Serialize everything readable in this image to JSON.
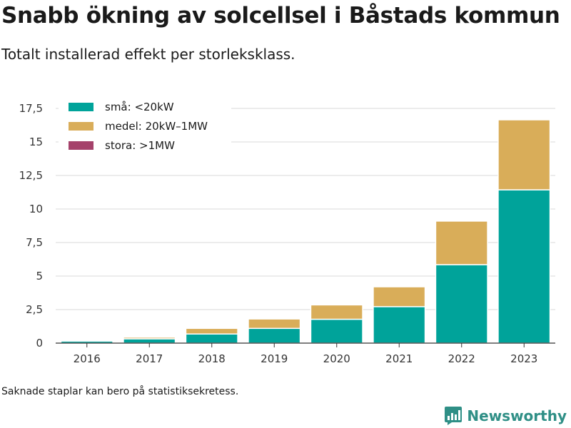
{
  "title": "Snabb ökning av solcellsel i Båstads kommun",
  "subtitle": "Totalt installerad effekt per storleksklass.",
  "note": "Saknade staplar kan bero på statistiksekretess.",
  "brand": "Newsworthy",
  "colors": {
    "small": "#00a39a",
    "medium": "#d9ad59",
    "large": "#a5426b",
    "grid": "#d9d9d9",
    "axis": "#333333",
    "brand": "#2f8f86"
  },
  "chart_data": {
    "type": "bar",
    "stacked": true,
    "categories": [
      "2016",
      "2017",
      "2018",
      "2019",
      "2020",
      "2021",
      "2022",
      "2023"
    ],
    "series": [
      {
        "name": "små: <20kW",
        "color": "#00a39a",
        "values": [
          0.15,
          0.32,
          0.68,
          1.1,
          1.78,
          2.72,
          5.85,
          11.43
        ]
      },
      {
        "name": "medel: 20kW–1MW",
        "color": "#d9ad59",
        "values": [
          0.0,
          0.12,
          0.42,
          0.7,
          1.07,
          1.48,
          3.25,
          5.22
        ]
      },
      {
        "name": "stora: >1MW",
        "color": "#a5426b",
        "values": [
          0,
          0,
          0,
          0,
          0,
          0,
          0,
          0
        ]
      }
    ],
    "yticks": [
      "0",
      "2,5",
      "5",
      "7,5",
      "10",
      "12,5",
      "15",
      "17,5"
    ],
    "ytick_values": [
      0,
      2.5,
      5,
      7.5,
      10,
      12.5,
      15,
      17.5
    ],
    "ylim": [
      0,
      17.5
    ],
    "grid": true,
    "legend_position": "top-left"
  }
}
